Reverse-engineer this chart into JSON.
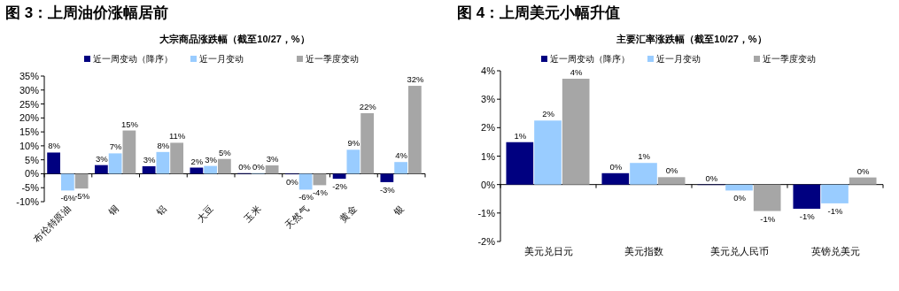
{
  "chart_data": [
    {
      "type": "bar",
      "title": "图 3：上周油价涨幅居前",
      "subtitle": "大宗商品涨跌幅（截至10/27，%）",
      "legend": "top",
      "categories": [
        "布伦特原油",
        "铜",
        "铝",
        "大豆",
        "玉米",
        "天然气",
        "黄金",
        "银"
      ],
      "ylim": [
        -10,
        35
      ],
      "yticks": [
        {
          "value": -10,
          "label": "-10%"
        },
        {
          "value": -5,
          "label": "-5%"
        },
        {
          "value": 0,
          "label": "0%"
        },
        {
          "value": 5,
          "label": "5%"
        },
        {
          "value": 10,
          "label": "10%"
        },
        {
          "value": 15,
          "label": "15%"
        },
        {
          "value": 20,
          "label": "20%"
        },
        {
          "value": 25,
          "label": "25%"
        },
        {
          "value": 30,
          "label": "30%"
        },
        {
          "value": 35,
          "label": "35%"
        }
      ],
      "series": [
        {
          "name": "近一周变动（降序）",
          "color": "#000080",
          "values": [
            7.6,
            3.1,
            2.7,
            2.2,
            0.2,
            -0.2,
            -1.8,
            -3.0
          ],
          "value_labels": [
            "8%",
            "3%",
            "3%",
            "2%",
            "0%",
            "0%",
            "-2%",
            "-3%"
          ]
        },
        {
          "name": "近一月变动",
          "color": "#99ccff",
          "values": [
            -6.0,
            7.3,
            7.8,
            2.8,
            0.2,
            -5.7,
            8.6,
            4.2
          ],
          "value_labels": [
            "-6%",
            "7%",
            "8%",
            "3%",
            "0%",
            "-6%",
            "9%",
            "4%"
          ]
        },
        {
          "name": "近一季度变动",
          "color": "#a6a6a6",
          "values": [
            -5.3,
            15.5,
            11.1,
            5.3,
            3.0,
            -4.1,
            21.7,
            31.5
          ],
          "value_labels": [
            "-5%",
            "15%",
            "11%",
            "5%",
            "3%",
            "-4%",
            "22%",
            "32%"
          ]
        }
      ]
    },
    {
      "type": "bar",
      "title": "图 4：上周美元小幅升值",
      "subtitle": "主要汇率涨跌幅（截至10/27，%）",
      "legend": "top",
      "categories": [
        "美元兑日元",
        "美元指数",
        "美元兑人民币",
        "英镑兑美元"
      ],
      "ylim": [
        -2,
        4
      ],
      "yticks": [
        {
          "value": -2,
          "label": "-2%"
        },
        {
          "value": -1,
          "label": "-1%"
        },
        {
          "value": 0,
          "label": "0%"
        },
        {
          "value": 1,
          "label": "1%"
        },
        {
          "value": 2,
          "label": "2%"
        },
        {
          "value": 3,
          "label": "3%"
        },
        {
          "value": 4,
          "label": "4%"
        }
      ],
      "series": [
        {
          "name": "近一周变动（降序）",
          "color": "#000080",
          "values": [
            1.49,
            0.4,
            0.0,
            -0.85
          ],
          "value_labels": [
            "1%",
            "0%",
            "0%",
            "-1%"
          ]
        },
        {
          "name": "近一月变动",
          "color": "#99ccff",
          "values": [
            2.25,
            0.76,
            -0.21,
            -0.66
          ],
          "value_labels": [
            "2%",
            "1%",
            "0%",
            "-1%"
          ]
        },
        {
          "name": "近一季度变动",
          "color": "#a6a6a6",
          "values": [
            3.72,
            0.26,
            -0.93,
            0.25
          ],
          "value_labels": [
            "4%",
            "0%",
            "-1%",
            "0%"
          ]
        }
      ]
    }
  ]
}
